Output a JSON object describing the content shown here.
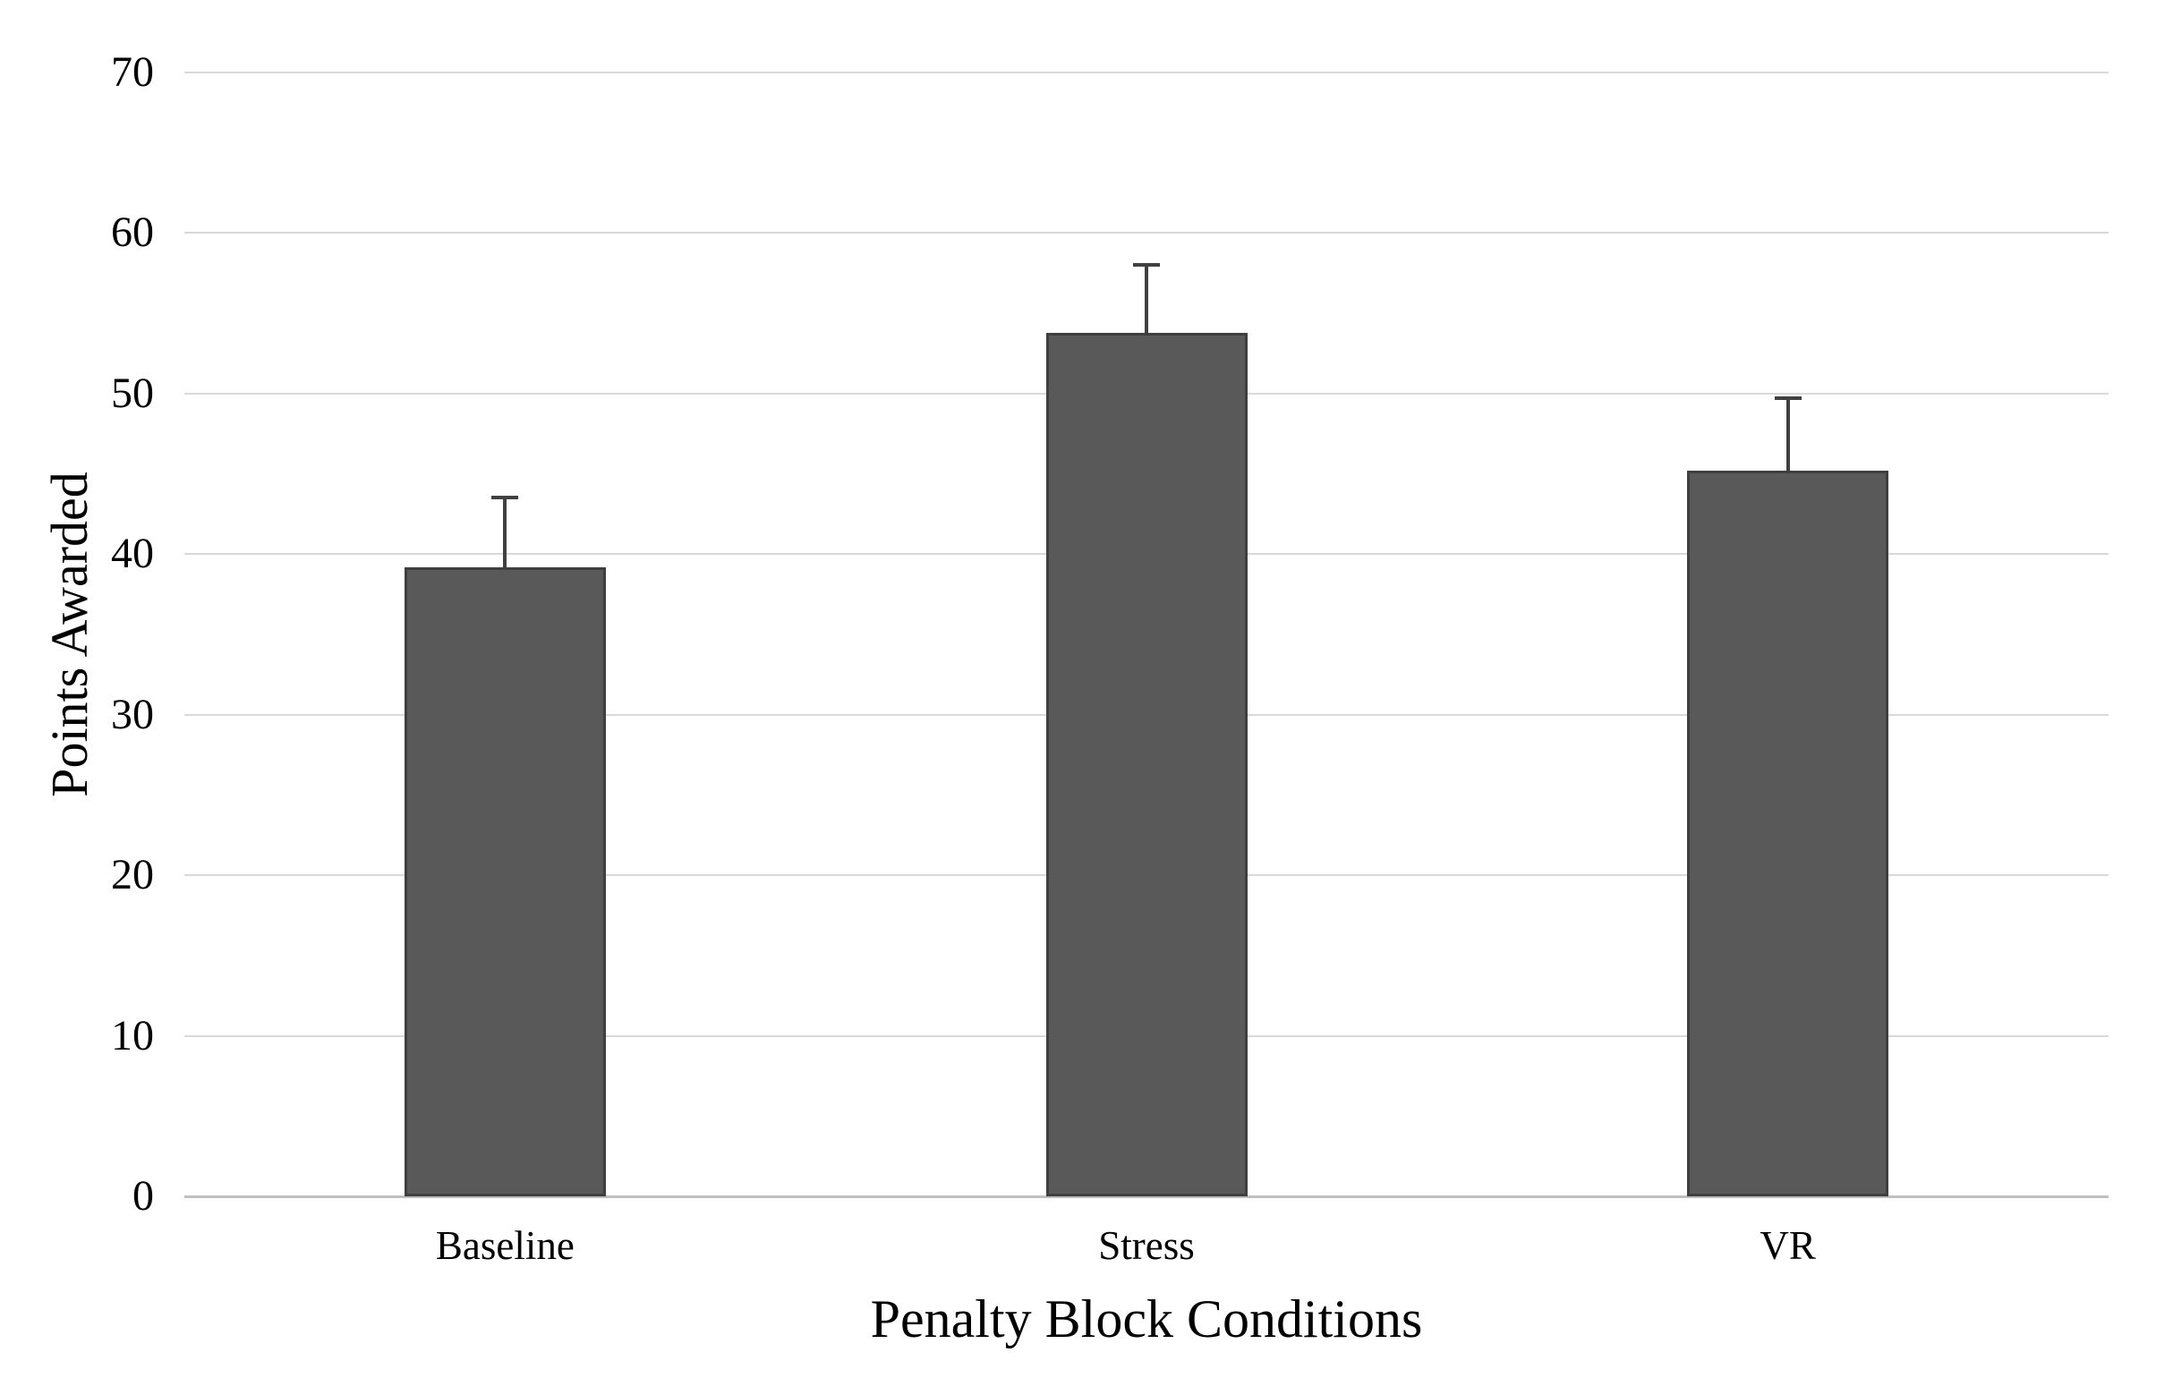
{
  "chart_data": {
    "type": "bar",
    "categories": [
      "Baseline",
      "Stress",
      "VR"
    ],
    "values": [
      39.2,
      53.8,
      45.2
    ],
    "error_upper": [
      4.3,
      4.2,
      4.5
    ],
    "xlabel": "Penalty Block Conditions",
    "ylabel": "Points Awarded",
    "ylim": [
      0,
      70
    ],
    "yticks": [
      0,
      10,
      20,
      30,
      40,
      50,
      60,
      70
    ],
    "grid": true,
    "legend": "none",
    "bar_fill_color": "#595959",
    "bar_border_color": "#3F3F3F",
    "error_bar_color": "#404040",
    "gridline_color": "#D9D9D9",
    "axis_line_color": "#BFBFBF",
    "text_color": "#000000",
    "background_color": "#FFFFFF"
  }
}
